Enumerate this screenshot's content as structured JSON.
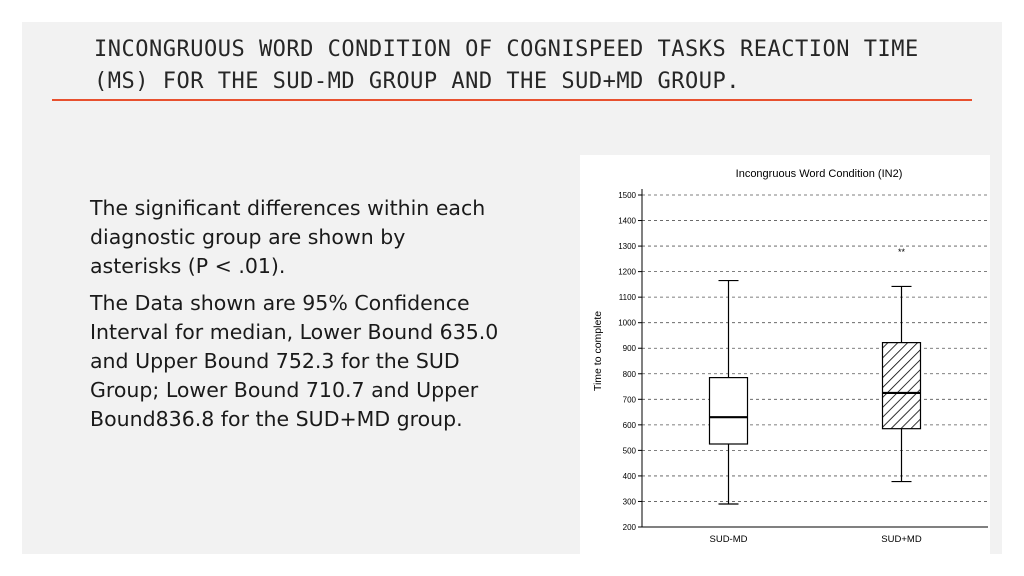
{
  "slide": {
    "title_line1": "INCONGRUOUS WORD CONDITION OF COGNISPEED TASKS REACTION TIME",
    "title_line2": "(MS) FOR THE SUD-MD GROUP AND THE SUD+MD GROUP.",
    "paragraph1": "The significant differences within each diagnostic group are shown by asterisks (P < .01).",
    "paragraph2": "The Data shown are 95% Confidence Interval for median, Lower Bound 635.0 and Upper Bound 752.3 for the SUD Group; Lower Bound 710.7 and Upper Bound836.8 for the SUD+MD group."
  },
  "colors": {
    "accent_rule": "#e8502e",
    "slide_bg": "#f2f2f2"
  },
  "chart_data": {
    "type": "box",
    "title": "Incongruous Word Condition (IN2)",
    "xlabel": "",
    "ylabel": "Time to complete",
    "ylim": [
      200,
      1500
    ],
    "yticks": [
      "200",
      "300",
      "400",
      "500",
      "600",
      "700",
      "800",
      "900",
      "1000",
      "1100",
      "1200",
      "1300",
      "1400",
      "1500"
    ],
    "grid": "horizontal-dashed",
    "categories": [
      "SUD-MD",
      "SUD+MD"
    ],
    "boxes": [
      {
        "name": "SUD-MD",
        "min": 290,
        "q1": 525,
        "median": 630,
        "q3": 785,
        "max": 1165,
        "fill": "plain",
        "outlier_marker": ""
      },
      {
        "name": "SUD+MD",
        "min": 378,
        "q1": 585,
        "median": 725,
        "q3": 922,
        "max": 1142,
        "fill": "hatched",
        "outlier_marker": "**"
      }
    ]
  }
}
